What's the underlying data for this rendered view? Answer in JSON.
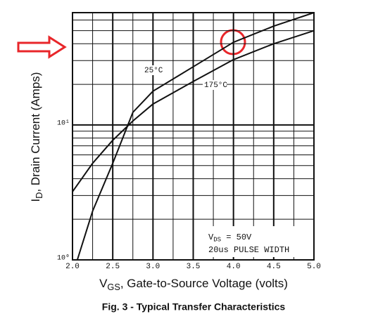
{
  "chart_data": {
    "type": "line",
    "title": "Fig. 3 - Typical Transfer Characteristics",
    "xlabel": {
      "main": "V",
      "sub": "GS",
      "rest": ", Gate-to-Source Voltage (volts)"
    },
    "ylabel": {
      "main": "I",
      "sub": "D",
      "rest": ", Drain Current (Amps)"
    },
    "annotations": [
      {
        "main": "V",
        "sub": "DS",
        "rest": " = 50V"
      },
      {
        "main": "20us PULSE WIDTH"
      }
    ],
    "log_y": true,
    "grid": true,
    "xlim": [
      2.0,
      5.0
    ],
    "ylim": [
      1,
      68
    ],
    "xticks": [
      {
        "value": 2.0,
        "label": "2.0"
      },
      2.5,
      {
        "value": 3.0,
        "label": "3.0"
      },
      3.5,
      {
        "value": 4.0,
        "label": "4.0"
      },
      4.5,
      {
        "value": 5.0,
        "label": "5.0"
      }
    ],
    "xminorticks": [
      2.25,
      2.75,
      3.25,
      3.75,
      4.25,
      4.75
    ],
    "yticks": [
      {
        "value": 1,
        "label": "10⁰"
      },
      {
        "value": 10,
        "label": "10¹"
      }
    ],
    "yminorticks": [
      2,
      3,
      4,
      5,
      6,
      7,
      8,
      9,
      20,
      30,
      40,
      50,
      60
    ],
    "series": [
      {
        "name": "25°C",
        "color": "#111111",
        "x": [
          2.06,
          2.25,
          2.5,
          2.75,
          3.0,
          3.5,
          4.0,
          4.5,
          5.0
        ],
        "values": [
          1,
          2.3,
          5.2,
          12.4,
          17.8,
          27,
          41,
          54,
          68
        ]
      },
      {
        "name": "175°C",
        "color": "#111111",
        "x": [
          2.0,
          2.25,
          2.5,
          2.75,
          3.0,
          3.5,
          4.0,
          4.5,
          5.0
        ],
        "values": [
          3.2,
          5.2,
          7.7,
          10.7,
          14.3,
          21,
          30.5,
          40,
          50
        ]
      }
    ]
  }
}
